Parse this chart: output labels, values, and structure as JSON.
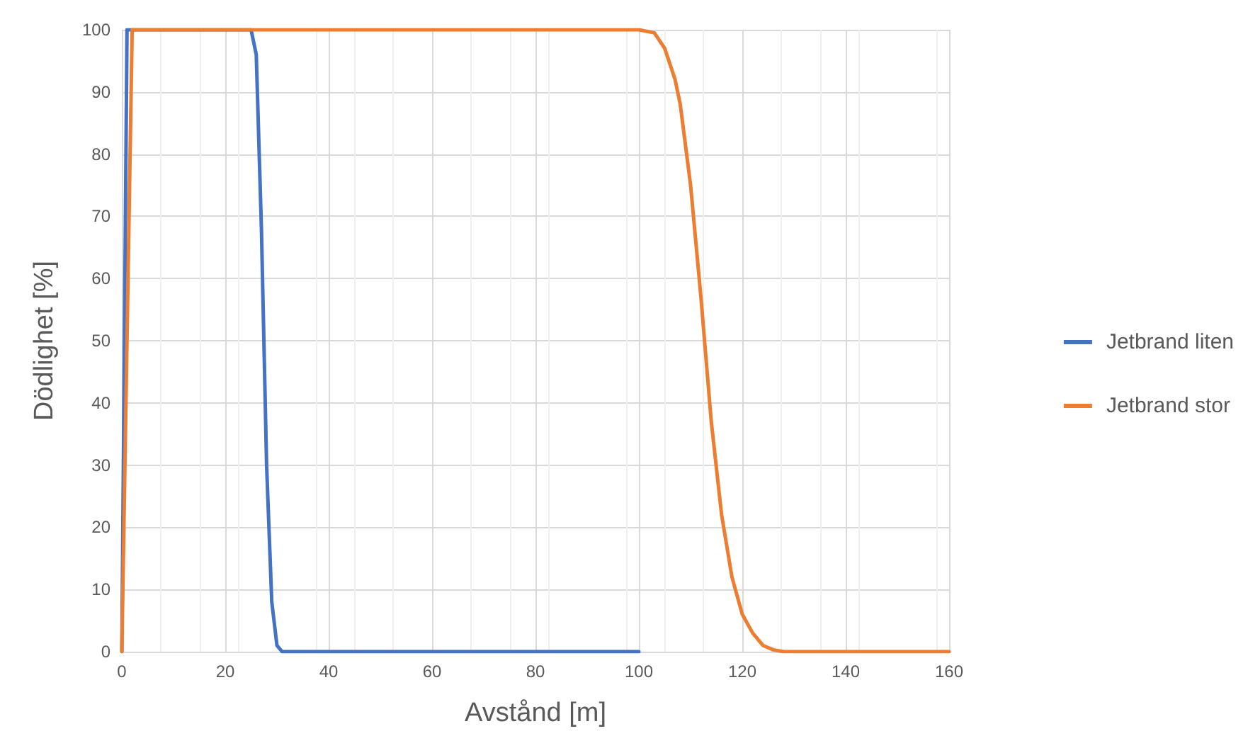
{
  "chart_data": {
    "type": "line",
    "xlabel": "Avstånd [m]",
    "ylabel": "Dödlighet [%]",
    "xlim": [
      0,
      160
    ],
    "xticks": [
      0,
      20,
      40,
      60,
      80,
      100,
      120,
      140,
      160
    ],
    "ylim": [
      0,
      100
    ],
    "yticks": [
      0,
      10,
      20,
      30,
      40,
      50,
      60,
      70,
      80,
      90,
      100
    ],
    "grid": true,
    "legend": "right",
    "marker": "none",
    "line_style": "solid",
    "series": [
      {
        "name": "Jetbrand liten",
        "color": "#4472c4",
        "x": [
          0,
          1,
          25,
          26,
          27,
          28,
          29,
          30,
          31,
          100
        ],
        "values": [
          0,
          100,
          100,
          96,
          68,
          30,
          8,
          1,
          0,
          0
        ]
      },
      {
        "name": "Jetbrand stor",
        "color": "#ed7d31",
        "x": [
          0,
          2,
          100,
          103,
          105,
          107,
          108,
          110,
          112,
          114,
          116,
          118,
          120,
          122,
          124,
          126,
          128,
          160
        ],
        "values": [
          0,
          100,
          100,
          99.5,
          97,
          92,
          88,
          75,
          57,
          37,
          22,
          12,
          6,
          3,
          1,
          0.3,
          0,
          0
        ]
      }
    ]
  }
}
